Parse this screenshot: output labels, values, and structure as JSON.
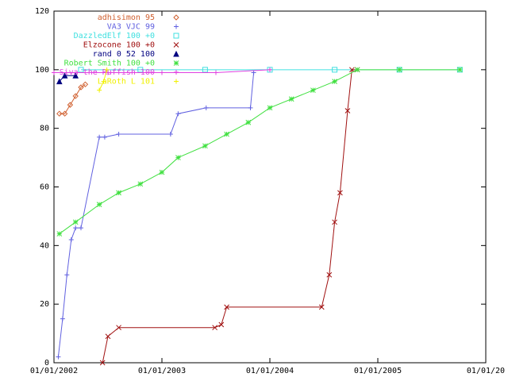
{
  "chart_data": {
    "type": "line",
    "xlim": [
      2002,
      2006
    ],
    "xticks": [
      {
        "value": 2002,
        "label": "01/01/2002"
      },
      {
        "value": 2003,
        "label": "01/01/2003"
      },
      {
        "value": 2004,
        "label": "01/01/2004"
      },
      {
        "value": 2005,
        "label": "01/01/2005"
      },
      {
        "value": 2006,
        "label": "01/01/20"
      }
    ],
    "ylim": [
      0,
      120
    ],
    "yticks": [
      0,
      20,
      40,
      60,
      80,
      100,
      120
    ],
    "series": [
      {
        "name": "adhisimon 95",
        "color": "#d06030",
        "marker": "diamond",
        "x": [
          2002.05,
          2002.1,
          2002.15,
          2002.2,
          2002.25,
          2002.29
        ],
        "values": [
          85,
          85,
          88,
          91,
          94,
          95
        ]
      },
      {
        "name": "VA3 VJC 99",
        "color": "#6060e0",
        "marker": "plus",
        "x": [
          2002.04,
          2002.08,
          2002.12,
          2002.16,
          2002.2,
          2002.25,
          2002.42,
          2002.47,
          2002.6,
          2003.08,
          2003.15,
          2003.41,
          2003.82,
          2003.85
        ],
        "values": [
          2,
          15,
          30,
          42,
          46,
          46,
          77,
          77,
          78,
          78,
          85,
          87,
          87,
          99
        ]
      },
      {
        "name": "DazzledElf 100 +0",
        "color": "#40e0e0",
        "marker": "square",
        "x": [
          2002.25,
          2002.8,
          2003.4,
          2004.0,
          2004.6,
          2005.2,
          2005.76
        ],
        "values": [
          100,
          100,
          100,
          100,
          100,
          100,
          100
        ]
      },
      {
        "name": "Elzocone 100 +0",
        "color": "#a01010",
        "marker": "cross",
        "x": [
          2002.45,
          2002.5,
          2002.6,
          2003.49,
          2003.55,
          2003.6,
          2004.48,
          2004.55,
          2004.6,
          2004.65,
          2004.72,
          2004.76,
          2004.81
        ],
        "values": [
          0,
          9,
          12,
          12,
          13,
          19,
          19,
          30,
          48,
          58,
          86,
          100,
          100
        ]
      },
      {
        "name": "rand 0 52 100",
        "color": "#000080",
        "marker": "triangle",
        "x": [
          2002.05,
          2002.1,
          2002.2
        ],
        "values": [
          96,
          98,
          98
        ]
      },
      {
        "name": "Robert Smith 100 +0",
        "color": "#40e040",
        "marker": "star",
        "x": [
          2002.05,
          2002.2,
          2002.42,
          2002.6,
          2002.8,
          2003.0,
          2003.15,
          2003.4,
          2003.6,
          2003.8,
          2004.0,
          2004.2,
          2004.4,
          2004.6,
          2004.81,
          2005.2,
          2005.76
        ],
        "values": [
          44,
          48,
          54,
          58,
          61,
          65,
          70,
          74,
          78,
          82,
          87,
          90,
          93,
          96,
          100,
          100,
          100
        ]
      },
      {
        "name": "Siva the Ruffish 100",
        "color": "#e040e0",
        "marker": "plus",
        "x": [
          2002.0,
          2002.5,
          2003.0,
          2003.5,
          2004.0
        ],
        "values": [
          99,
          99,
          99,
          99,
          100
        ]
      },
      {
        "name": "LaRoth L 101",
        "color": "#f0f000",
        "marker": "plus",
        "x": [
          2002.42,
          2002.46,
          2002.49
        ],
        "values": [
          93,
          96,
          100
        ]
      }
    ]
  }
}
